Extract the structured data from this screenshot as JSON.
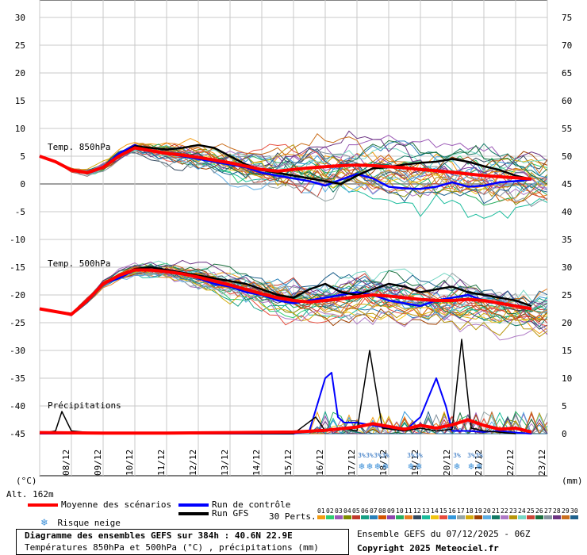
{
  "chart_data": {
    "type": "line",
    "title": "Diagramme des ensembles GEFS sur 384h : 40.6N 22.9E",
    "subtitle": "Températures 850hPa et 500hPa (°C) , précipitations (mm)",
    "run_info": "Ensemble GEFS du 07/12/2025 - 06Z",
    "copyright": "Copyright 2025 Meteociel.fr",
    "left_axis": {
      "unit": "(°C)",
      "range": [
        -45,
        30
      ],
      "ticks": [
        30,
        25,
        20,
        15,
        10,
        5,
        0,
        -5,
        -10,
        -15,
        -20,
        -25,
        -30,
        -35,
        -40,
        -45
      ]
    },
    "right_axis": {
      "unit": "(mm)",
      "range": [
        0,
        75
      ],
      "ticks": [
        75,
        70,
        65,
        60,
        55,
        50,
        45,
        40,
        35,
        30,
        25,
        20,
        15,
        10,
        5,
        0
      ]
    },
    "x_labels": [
      "08/12",
      "09/12",
      "10/12",
      "11/12",
      "12/12",
      "13/12",
      "14/12",
      "15/12",
      "16/12",
      "17/12",
      "18/12",
      "19/12",
      "20/12",
      "21/12",
      "22/12",
      "23/12"
    ],
    "altitude": "Alt. 162m",
    "panel_labels": {
      "t850": "Temp. 850hPa",
      "t500": "Temp. 500hPa",
      "precip": "Précipitations"
    },
    "legend": {
      "mean": "Moyenne des scénarios",
      "control": "Run de contrôle",
      "gfs": "Run GFS",
      "snow": "Risque neige",
      "perts": "30 Perts."
    },
    "colors": {
      "mean": "#ff0000",
      "control": "#0000ff",
      "gfs": "#000000"
    },
    "pert_labels": [
      "01",
      "02",
      "03",
      "04",
      "05",
      "06",
      "07",
      "08",
      "09",
      "10",
      "11",
      "12",
      "13",
      "14",
      "15",
      "16",
      "17",
      "18",
      "19",
      "20",
      "21",
      "22",
      "23",
      "24",
      "25",
      "26",
      "27",
      "28",
      "29",
      "30"
    ],
    "pert_colors": [
      "#f39c12",
      "#2ecc71",
      "#9b59b6",
      "#7f8c00",
      "#c0392b",
      "#16a085",
      "#2980b9",
      "#d35400",
      "#8e44ad",
      "#27ae60",
      "#e67e22",
      "#34495e",
      "#1abc9c",
      "#f1c40f",
      "#e74c3c",
      "#3498db",
      "#95a5a6",
      "#d4ac0d",
      "#a04000",
      "#5dade2",
      "#117864",
      "#af7ac5",
      "#b7950b",
      "#76d7c4",
      "#cb4335",
      "#196f3d",
      "#85929e",
      "#6c3483",
      "#ca6f1e",
      "#1f618d"
    ],
    "snow_marks": [
      {
        "day": 10.15,
        "text": "3%"
      },
      {
        "day": 10.4,
        "text": "3%"
      },
      {
        "day": 10.65,
        "text": "3%"
      },
      {
        "day": 10.9,
        "text": "3%"
      },
      {
        "day": 11.7,
        "text": "3%"
      },
      {
        "day": 11.95,
        "text": "3%"
      },
      {
        "day": 13.15,
        "text": "3%"
      },
      {
        "day": 13.6,
        "text": "3%"
      },
      {
        "day": 13.85,
        "text": "3%"
      }
    ],
    "series": {
      "t850_mean": [
        [
          0,
          5
        ],
        [
          0.5,
          4
        ],
        [
          1,
          2.5
        ],
        [
          1.5,
          2
        ],
        [
          2,
          3
        ],
        [
          2.5,
          5
        ],
        [
          3,
          6.5
        ],
        [
          3.5,
          6
        ],
        [
          4,
          5.5
        ],
        [
          4.5,
          5.2
        ],
        [
          5,
          4.8
        ],
        [
          5.5,
          4.3
        ],
        [
          6,
          3.8
        ],
        [
          6.5,
          3.2
        ],
        [
          7,
          2.6
        ],
        [
          7.5,
          2.3
        ],
        [
          8,
          2.6
        ],
        [
          8.5,
          2.9
        ],
        [
          9,
          3.1
        ],
        [
          9.5,
          3.3
        ],
        [
          10,
          3.4
        ],
        [
          10.5,
          3.3
        ],
        [
          11,
          3.1
        ],
        [
          11.5,
          2.9
        ],
        [
          12,
          2.6
        ],
        [
          12.5,
          2.4
        ],
        [
          13,
          2.1
        ],
        [
          13.5,
          1.8
        ],
        [
          14,
          1.5
        ],
        [
          14.5,
          1.3
        ],
        [
          15,
          1.1
        ],
        [
          15.5,
          0.9
        ]
      ],
      "t850_control": [
        [
          0,
          5
        ],
        [
          0.5,
          4
        ],
        [
          1,
          2.5
        ],
        [
          1.5,
          2
        ],
        [
          2,
          3
        ],
        [
          2.5,
          5.5
        ],
        [
          3,
          7
        ],
        [
          3.5,
          6
        ],
        [
          4,
          5.5
        ],
        [
          4.5,
          5
        ],
        [
          5,
          4.5
        ],
        [
          5.5,
          4
        ],
        [
          6,
          3.5
        ],
        [
          6.5,
          3
        ],
        [
          7,
          2
        ],
        [
          7.5,
          1.5
        ],
        [
          8,
          1
        ],
        [
          8.5,
          0.5
        ],
        [
          9,
          -0.3
        ],
        [
          9.5,
          0.8
        ],
        [
          10,
          1.8
        ],
        [
          10.5,
          1
        ],
        [
          11,
          -0.5
        ],
        [
          11.5,
          -0.8
        ],
        [
          12,
          -0.9
        ],
        [
          12.5,
          -0.5
        ],
        [
          13,
          0.3
        ],
        [
          13.5,
          -0.5
        ],
        [
          14,
          -0.3
        ],
        [
          14.5,
          0.3
        ],
        [
          15,
          0.5
        ],
        [
          15.5,
          0.8
        ]
      ],
      "t850_gfs": [
        [
          0,
          5
        ],
        [
          0.5,
          4
        ],
        [
          1,
          2.5
        ],
        [
          1.5,
          2
        ],
        [
          2,
          3
        ],
        [
          2.5,
          5
        ],
        [
          3,
          6.8
        ],
        [
          3.5,
          6.5
        ],
        [
          4,
          6.2
        ],
        [
          4.5,
          6.5
        ],
        [
          5,
          7
        ],
        [
          5.5,
          6.5
        ],
        [
          6,
          5
        ],
        [
          6.5,
          3.5
        ],
        [
          7,
          2.5
        ],
        [
          7.5,
          2
        ],
        [
          8,
          1.5
        ],
        [
          8.5,
          1
        ],
        [
          9,
          0.5
        ],
        [
          9.5,
          0
        ],
        [
          10,
          1.5
        ],
        [
          10.5,
          2.8
        ],
        [
          11,
          3
        ],
        [
          11.5,
          3.5
        ],
        [
          12,
          3.8
        ],
        [
          12.5,
          4
        ],
        [
          13,
          4.5
        ],
        [
          13.5,
          4
        ],
        [
          14,
          3.2
        ],
        [
          14.5,
          2.5
        ],
        [
          15,
          1.5
        ],
        [
          15.5,
          0.8
        ]
      ],
      "t500_mean": [
        [
          0,
          -22.5
        ],
        [
          0.5,
          -23
        ],
        [
          1,
          -23.5
        ],
        [
          1.5,
          -21
        ],
        [
          2,
          -18
        ],
        [
          2.5,
          -16.5
        ],
        [
          3,
          -15.5
        ],
        [
          3.5,
          -15.5
        ],
        [
          4,
          -15.8
        ],
        [
          4.5,
          -16.2
        ],
        [
          5,
          -16.8
        ],
        [
          5.5,
          -17.5
        ],
        [
          6,
          -18.2
        ],
        [
          6.5,
          -19
        ],
        [
          7,
          -19.8
        ],
        [
          7.5,
          -20.5
        ],
        [
          8,
          -21
        ],
        [
          8.5,
          -21.3
        ],
        [
          9,
          -21
        ],
        [
          9.5,
          -20.7
        ],
        [
          10,
          -20.3
        ],
        [
          10.5,
          -20
        ],
        [
          11,
          -20.2
        ],
        [
          11.5,
          -20.5
        ],
        [
          12,
          -20.8
        ],
        [
          12.5,
          -21
        ],
        [
          13,
          -21
        ],
        [
          13.5,
          -20.8
        ],
        [
          14,
          -21
        ],
        [
          14.5,
          -21.5
        ],
        [
          15,
          -22
        ],
        [
          15.5,
          -22.5
        ]
      ],
      "t500_control": [
        [
          0,
          -22.5
        ],
        [
          0.5,
          -23
        ],
        [
          1,
          -23.5
        ],
        [
          1.5,
          -21
        ],
        [
          2,
          -18
        ],
        [
          2.5,
          -17
        ],
        [
          3,
          -15.5
        ],
        [
          3.5,
          -15
        ],
        [
          4,
          -15.5
        ],
        [
          4.5,
          -16
        ],
        [
          5,
          -17
        ],
        [
          5.5,
          -18
        ],
        [
          6,
          -18.5
        ],
        [
          6.5,
          -19.5
        ],
        [
          7,
          -20
        ],
        [
          7.5,
          -21
        ],
        [
          8,
          -21.5
        ],
        [
          8.5,
          -21
        ],
        [
          9,
          -20.5
        ],
        [
          9.5,
          -20
        ],
        [
          10,
          -19.5
        ],
        [
          10.5,
          -20
        ],
        [
          11,
          -21
        ],
        [
          11.5,
          -21.5
        ],
        [
          12,
          -22
        ],
        [
          12.5,
          -21
        ],
        [
          13,
          -20.5
        ],
        [
          13.5,
          -20
        ],
        [
          14,
          -21
        ],
        [
          14.5,
          -21.5
        ],
        [
          15,
          -22
        ],
        [
          15.5,
          -22.5
        ]
      ],
      "t500_gfs": [
        [
          0,
          -22.5
        ],
        [
          0.5,
          -23
        ],
        [
          1,
          -23.5
        ],
        [
          1.5,
          -21
        ],
        [
          2,
          -18
        ],
        [
          2.5,
          -16.5
        ],
        [
          3,
          -15.3
        ],
        [
          3.5,
          -15
        ],
        [
          4,
          -15.5
        ],
        [
          4.5,
          -16
        ],
        [
          5,
          -16.5
        ],
        [
          5.5,
          -17
        ],
        [
          6,
          -17.5
        ],
        [
          6.5,
          -18
        ],
        [
          7,
          -19
        ],
        [
          7.5,
          -20
        ],
        [
          8,
          -20.5
        ],
        [
          8.5,
          -19
        ],
        [
          9,
          -18
        ],
        [
          9.5,
          -19.5
        ],
        [
          10,
          -20
        ],
        [
          10.5,
          -19
        ],
        [
          11,
          -18
        ],
        [
          11.5,
          -18.5
        ],
        [
          12,
          -19.5
        ],
        [
          12.5,
          -19
        ],
        [
          13,
          -18.5
        ],
        [
          13.5,
          -19.5
        ],
        [
          14,
          -20
        ],
        [
          14.5,
          -20.5
        ],
        [
          15,
          -21
        ],
        [
          15.5,
          -22
        ]
      ],
      "precip_mean": [
        [
          0,
          0.2
        ],
        [
          2,
          0.1
        ],
        [
          4,
          0.1
        ],
        [
          6,
          0.2
        ],
        [
          8,
          0.3
        ],
        [
          9,
          0.6
        ],
        [
          10,
          1.2
        ],
        [
          10.5,
          1.8
        ],
        [
          11,
          1.3
        ],
        [
          11.5,
          0.8
        ],
        [
          12,
          1.5
        ],
        [
          12.5,
          1
        ],
        [
          13,
          1.6
        ],
        [
          13.5,
          2.5
        ],
        [
          14,
          1.5
        ],
        [
          14.5,
          0.8
        ],
        [
          15,
          1
        ],
        [
          15.5,
          0.3
        ]
      ],
      "precip_control": [
        [
          0,
          0
        ],
        [
          8,
          0
        ],
        [
          8.5,
          0.5
        ],
        [
          9,
          10
        ],
        [
          9.2,
          11
        ],
        [
          9.4,
          3
        ],
        [
          9.6,
          2
        ],
        [
          10,
          2
        ],
        [
          10.5,
          1.5
        ],
        [
          11,
          1
        ],
        [
          11.5,
          0.5
        ],
        [
          12,
          3
        ],
        [
          12.5,
          10
        ],
        [
          12.8,
          5
        ],
        [
          13,
          0.5
        ],
        [
          13.5,
          0.5
        ],
        [
          14,
          0.3
        ],
        [
          14.5,
          0.5
        ],
        [
          15,
          0.2
        ],
        [
          15.5,
          0
        ]
      ],
      "precip_gfs": [
        [
          0,
          0
        ],
        [
          0.5,
          0.5
        ],
        [
          0.7,
          4
        ],
        [
          1,
          0.5
        ],
        [
          2,
          0
        ],
        [
          8,
          0
        ],
        [
          8.7,
          3
        ],
        [
          9,
          0.5
        ],
        [
          9.5,
          1
        ],
        [
          10,
          0.5
        ],
        [
          10.4,
          15
        ],
        [
          10.8,
          1
        ],
        [
          11.5,
          0.5
        ],
        [
          12,
          1
        ],
        [
          12.5,
          0.5
        ],
        [
          13,
          0.8
        ],
        [
          13.3,
          17
        ],
        [
          13.6,
          1
        ],
        [
          14,
          0.5
        ],
        [
          15,
          0
        ]
      ]
    }
  }
}
